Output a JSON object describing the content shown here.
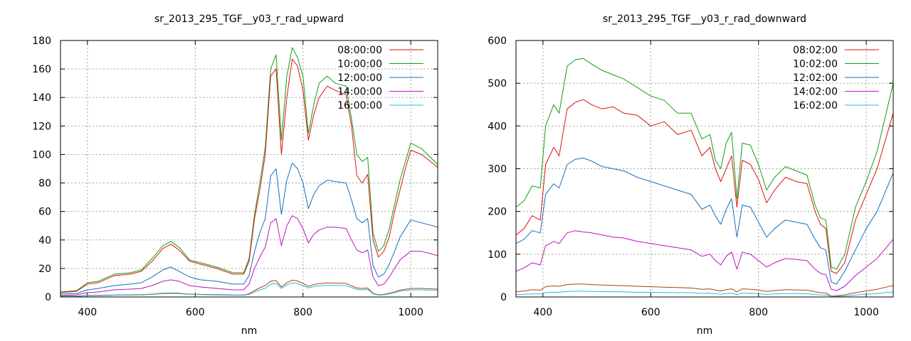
{
  "chart_data": [
    {
      "type": "line",
      "title": "sr_2013_295_TGF__y03_r_rad_upward",
      "xlabel": "nm",
      "ylabel": "",
      "xlim": [
        350,
        1050
      ],
      "ylim": [
        0,
        180
      ],
      "xticks": [
        400,
        600,
        800,
        1000
      ],
      "yticks": [
        0,
        20,
        40,
        60,
        80,
        100,
        120,
        140,
        160,
        180
      ],
      "grid": true,
      "legend_position": "top-right",
      "x": [
        350,
        380,
        400,
        420,
        450,
        480,
        500,
        520,
        540,
        555,
        570,
        590,
        610,
        640,
        670,
        690,
        700,
        710,
        720,
        730,
        740,
        750,
        760,
        770,
        780,
        790,
        800,
        810,
        820,
        830,
        845,
        860,
        880,
        890,
        900,
        910,
        920,
        930,
        940,
        950,
        960,
        970,
        980,
        990,
        1000,
        1020,
        1050
      ],
      "series": [
        {
          "name": "08:00:00",
          "color": "#e01010",
          "values": [
            3,
            4,
            9,
            10,
            15,
            16,
            18,
            25,
            34,
            37,
            33,
            25,
            23,
            20,
            16,
            16,
            25,
            55,
            75,
            100,
            155,
            160,
            100,
            140,
            167,
            162,
            145,
            110,
            128,
            140,
            148,
            145,
            142,
            120,
            85,
            80,
            86,
            40,
            28,
            32,
            42,
            60,
            75,
            90,
            103,
            100,
            91
          ]
        },
        {
          "name": "10:00:00",
          "color": "#10a010",
          "values": [
            3.5,
            4.5,
            10,
            11,
            16,
            17,
            19,
            27,
            36,
            39,
            35,
            26,
            24,
            21,
            17,
            17,
            27,
            58,
            80,
            105,
            160,
            170,
            110,
            155,
            175,
            168,
            155,
            115,
            135,
            150,
            155,
            150,
            148,
            125,
            100,
            95,
            98,
            45,
            32,
            36,
            48,
            65,
            82,
            95,
            108,
            104,
            93
          ]
        },
        {
          "name": "12:00:00",
          "color": "#1070c0",
          "values": [
            2,
            2.5,
            5,
            6,
            8,
            9,
            10,
            14,
            19,
            21,
            18,
            14,
            12,
            11,
            9,
            9,
            15,
            32,
            45,
            55,
            85,
            90,
            58,
            82,
            94,
            90,
            80,
            62,
            72,
            78,
            82,
            81,
            80,
            68,
            55,
            52,
            55,
            22,
            14,
            16,
            23,
            32,
            42,
            48,
            54,
            52,
            49
          ]
        },
        {
          "name": "14:00:00",
          "color": "#c010c0",
          "values": [
            1,
            1.5,
            3,
            3.5,
            5,
            5.5,
            6,
            8,
            11,
            12,
            11,
            8,
            7,
            6,
            5,
            5,
            9,
            20,
            28,
            35,
            52,
            55,
            36,
            50,
            57,
            55,
            48,
            38,
            44,
            47,
            49,
            49,
            48,
            40,
            33,
            31,
            33,
            14,
            8,
            9,
            14,
            20,
            26,
            29,
            32,
            32,
            29
          ]
        },
        {
          "name": "16:00:00",
          "color": "#20c0e0",
          "values": [
            0.3,
            0.4,
            0.8,
            0.9,
            1.2,
            1.3,
            1.4,
            1.8,
            2.3,
            2.5,
            2.3,
            1.8,
            1.6,
            1.4,
            1.2,
            1.2,
            1.8,
            3.5,
            5,
            6,
            9,
            9.5,
            6,
            8.5,
            9.8,
            9.4,
            8,
            6.3,
            7.3,
            7.8,
            8.2,
            8.1,
            8,
            6.6,
            5.3,
            5,
            5.3,
            2.2,
            1.3,
            1.5,
            2.2,
            3,
            4,
            4.5,
            5,
            5,
            4.6
          ]
        },
        {
          "name": "",
          "color": "#b04010",
          "values": [
            0.5,
            0.6,
            1,
            1.1,
            1.4,
            1.5,
            1.6,
            2,
            2.6,
            2.8,
            2.6,
            2,
            1.8,
            1.6,
            1.4,
            1.4,
            2.2,
            4.5,
            6.5,
            8,
            11,
            11.5,
            7,
            10,
            11.8,
            11.2,
            9.5,
            7.5,
            8.7,
            9.3,
            9.8,
            9.7,
            9.5,
            7.8,
            6.3,
            6,
            6.3,
            2.6,
            1.5,
            1.8,
            2.6,
            3.6,
            4.8,
            5.4,
            6,
            6,
            5.5
          ]
        }
      ]
    },
    {
      "type": "line",
      "title": "sr_2013_295_TGF__y03_r_rad_downward",
      "xlabel": "nm",
      "ylabel": "",
      "xlim": [
        350,
        1050
      ],
      "ylim": [
        0,
        600
      ],
      "xticks": [
        400,
        600,
        800,
        1000
      ],
      "yticks": [
        0,
        100,
        200,
        300,
        400,
        500,
        600
      ],
      "grid": true,
      "legend_position": "top-right",
      "x": [
        350,
        365,
        380,
        395,
        405,
        420,
        430,
        445,
        460,
        475,
        490,
        510,
        530,
        550,
        575,
        600,
        625,
        650,
        675,
        695,
        710,
        720,
        730,
        740,
        750,
        760,
        770,
        785,
        800,
        815,
        830,
        850,
        870,
        890,
        905,
        915,
        925,
        935,
        945,
        960,
        980,
        1000,
        1020,
        1050
      ],
      "series": [
        {
          "name": "08:02:00",
          "color": "#e01010",
          "values": [
            145,
            160,
            190,
            180,
            310,
            350,
            330,
            440,
            455,
            462,
            450,
            440,
            445,
            430,
            425,
            400,
            410,
            380,
            390,
            330,
            350,
            300,
            270,
            300,
            330,
            210,
            320,
            310,
            275,
            220,
            250,
            280,
            270,
            265,
            200,
            170,
            160,
            60,
            55,
            80,
            180,
            240,
            300,
            430
          ]
        },
        {
          "name": "10:02:00",
          "color": "#10a010",
          "values": [
            210,
            225,
            260,
            255,
            400,
            450,
            430,
            540,
            555,
            558,
            545,
            530,
            520,
            510,
            490,
            470,
            460,
            430,
            430,
            370,
            380,
            320,
            300,
            360,
            385,
            230,
            360,
            355,
            310,
            250,
            280,
            305,
            295,
            285,
            215,
            185,
            180,
            70,
            65,
            100,
            210,
            270,
            340,
            500
          ]
        },
        {
          "name": "12:02:00",
          "color": "#1070c0",
          "values": [
            125,
            135,
            155,
            150,
            240,
            265,
            255,
            310,
            322,
            325,
            318,
            305,
            300,
            295,
            280,
            270,
            260,
            250,
            240,
            205,
            215,
            190,
            170,
            205,
            230,
            140,
            215,
            210,
            175,
            140,
            160,
            180,
            175,
            170,
            135,
            115,
            110,
            35,
            30,
            60,
            110,
            160,
            200,
            290
          ]
        },
        {
          "name": "14:02:00",
          "color": "#c010c0",
          "values": [
            60,
            68,
            80,
            75,
            120,
            130,
            125,
            150,
            155,
            152,
            150,
            145,
            140,
            138,
            130,
            125,
            120,
            115,
            110,
            95,
            100,
            85,
            75,
            95,
            105,
            65,
            105,
            100,
            85,
            70,
            80,
            90,
            88,
            85,
            65,
            55,
            52,
            18,
            15,
            25,
            50,
            70,
            90,
            135
          ]
        },
        {
          "name": "16:02:00",
          "color": "#20c0e0",
          "values": [
            5,
            6,
            7,
            7,
            10,
            11,
            11,
            13,
            13.5,
            13.5,
            13,
            12.5,
            12,
            12,
            11,
            11,
            10.5,
            10,
            10,
            8.5,
            9,
            7.5,
            6.5,
            8,
            9,
            5.5,
            9,
            8.5,
            7.5,
            6,
            7,
            8,
            7.8,
            7.5,
            5.7,
            4.8,
            4.5,
            1.6,
            1.3,
            2.2,
            4.5,
            6.2,
            8,
            12
          ]
        },
        {
          "name": "",
          "color": "#b04010",
          "values": [
            12,
            14,
            17,
            16,
            24,
            26,
            25,
            29,
            30,
            30,
            29,
            28,
            27,
            26.5,
            25,
            24,
            23,
            22,
            21,
            18,
            19,
            16,
            14,
            17,
            19,
            12,
            19,
            18,
            16,
            13,
            15,
            17,
            16.5,
            16,
            12,
            10,
            9.5,
            2,
            3,
            5,
            10,
            14,
            18,
            27
          ]
        }
      ]
    }
  ]
}
